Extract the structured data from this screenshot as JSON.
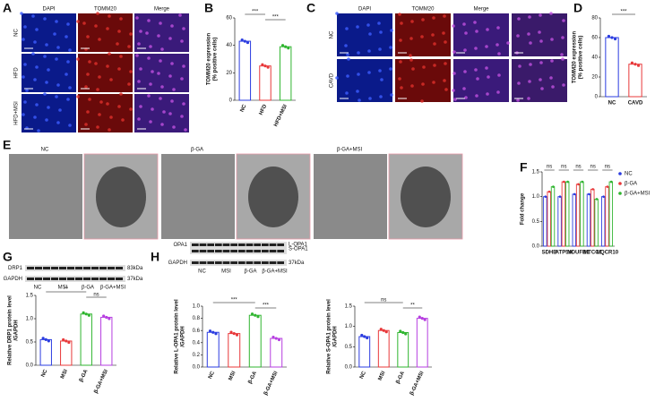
{
  "panels": {
    "letters": [
      "A",
      "B",
      "C",
      "D",
      "E",
      "F",
      "G",
      "H"
    ]
  },
  "panel_a": {
    "columns": [
      "DAPI",
      "TOMM20",
      "Merge"
    ],
    "rows": [
      "NC",
      "HFD",
      "HFD+MSI"
    ]
  },
  "panel_c": {
    "columns": [
      "DAPI",
      "TOMM20",
      "Merge"
    ],
    "rows": [
      "NC",
      "CAVD"
    ]
  },
  "panel_e": {
    "columns": [
      "NC",
      "β-GA",
      "β-GA+MSI"
    ]
  },
  "blot_g": {
    "proteins": [
      "DRP1",
      "GAPDH"
    ],
    "sizes": [
      "83kDa",
      "37kDa"
    ],
    "lanes": [
      "NC",
      "MSI",
      "β-GA",
      "β-GA+MSI"
    ]
  },
  "blot_h": {
    "proteins": [
      "OPA1",
      "GAPDH"
    ],
    "sizes": [
      "L-OPA1",
      "S-OPA1",
      "37kDa"
    ],
    "lanes": [
      "NC",
      "MSI",
      "β-GA",
      "β-GA+MSI"
    ]
  },
  "chart_data": [
    {
      "type": "bar",
      "y_label": [
        "TOMM20 expression",
        "(% positive cells)"
      ],
      "categories": [
        "NC",
        "HFD",
        "HFD+MSI"
      ],
      "values": [
        43,
        25,
        39
      ],
      "colors": [
        "#2b3ce0",
        "#e8383a",
        "#2fb52f"
      ],
      "ylim": [
        0,
        60
      ],
      "yticks": [
        0,
        20,
        40,
        60
      ],
      "annotations": [
        "***",
        "***"
      ]
    },
    {
      "type": "bar",
      "y_label": [
        "TOMM20 expression",
        "(% positive cells)"
      ],
      "categories": [
        "NC",
        "CAVD"
      ],
      "values": [
        60,
        33
      ],
      "colors": [
        "#2b3ce0",
        "#e8383a"
      ],
      "ylim": [
        0,
        80
      ],
      "yticks": [
        0,
        20,
        40,
        60,
        80
      ],
      "annotations": [
        "***"
      ]
    },
    {
      "type": "grouped-bar",
      "y_label": [
        "Fold change"
      ],
      "categories": [
        "SDHB",
        "ATP5A",
        "NDUFB1",
        "MTCO1",
        "UQCR10"
      ],
      "series": [
        {
          "name": "NC",
          "color": "#2b3ce0",
          "values": [
            1.0,
            1.0,
            1.05,
            1.05,
            1.0
          ]
        },
        {
          "name": "β-GA",
          "color": "#e8383a",
          "values": [
            1.1,
            1.3,
            1.25,
            1.15,
            1.2
          ]
        },
        {
          "name": "β-GA+MSI",
          "color": "#2fb52f",
          "values": [
            1.2,
            1.3,
            1.3,
            0.95,
            1.3
          ]
        }
      ],
      "ylim": [
        0,
        1.5
      ],
      "yticks": [
        {
          "value": 0,
          "label": "0.0"
        },
        0.5,
        {
          "value": 1,
          "label": "1.0"
        },
        1.5
      ],
      "legend": "right",
      "annotations": [
        "ns",
        "ns",
        "ns",
        "ns",
        "ns"
      ]
    },
    {
      "type": "bar",
      "y_label": [
        "Relative DRP1 protein level",
        "/GAPDH"
      ],
      "categories": [
        "NC",
        "MSI",
        "β-GA",
        "β-GA+MSI"
      ],
      "values": [
        0.55,
        0.52,
        1.1,
        1.03
      ],
      "colors": [
        "#2b3ce0",
        "#e8383a",
        "#2fb52f",
        "#b63ee0"
      ],
      "ylim": [
        0,
        1.5
      ],
      "yticks": [
        {
          "value": 0,
          "label": "0.0"
        },
        0.5,
        {
          "value": 1,
          "label": "1.0"
        },
        1.5
      ],
      "annotations": [
        "**",
        "ns"
      ]
    },
    {
      "type": "bar",
      "y_label": [
        "Relative L-OPA1 protein level",
        "/GAPDH"
      ],
      "categories": [
        "NC",
        "MSI",
        "β-GA",
        "β-GA+MSI"
      ],
      "values": [
        0.57,
        0.55,
        0.85,
        0.47
      ],
      "colors": [
        "#2b3ce0",
        "#e8383a",
        "#2fb52f",
        "#b63ee0"
      ],
      "ylim": [
        0,
        1
      ],
      "yticks": [
        {
          "value": 0,
          "label": "0.0"
        },
        0.2,
        0.4,
        0.6,
        0.8,
        {
          "value": 1,
          "label": "1.0"
        }
      ],
      "annotations": [
        "***",
        "***"
      ]
    },
    {
      "type": "bar",
      "y_label": [
        "Relative S-OPA1 protein level",
        "/GAPDH"
      ],
      "categories": [
        "NC",
        "MSI",
        "β-GA",
        "β-GA+MSI"
      ],
      "values": [
        0.75,
        0.9,
        0.85,
        1.2
      ],
      "colors": [
        "#2b3ce0",
        "#e8383a",
        "#2fb52f",
        "#b63ee0"
      ],
      "ylim": [
        0,
        1.5
      ],
      "yticks": [
        {
          "value": 0,
          "label": "0.0"
        },
        0.5,
        {
          "value": 1,
          "label": "1.0"
        },
        1.5
      ],
      "annotations": [
        "ns",
        "**"
      ]
    }
  ]
}
